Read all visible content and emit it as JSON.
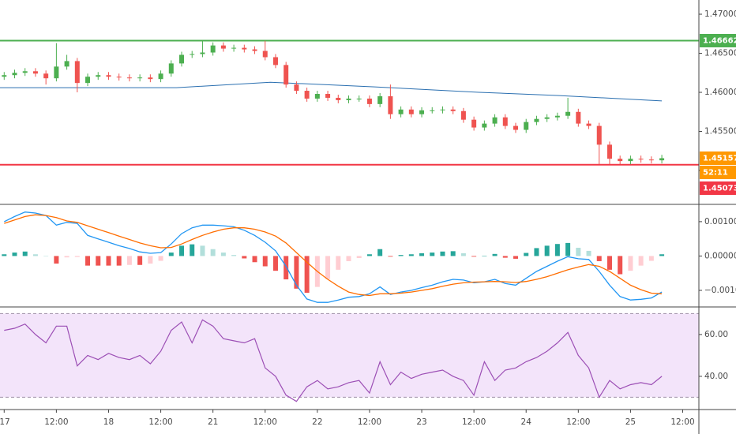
{
  "chart_data": [
    {
      "type": "candlestick",
      "x": [
        0,
        0.2,
        0.4,
        0.6,
        0.8,
        1,
        1.2,
        1.4,
        1.6,
        1.8,
        2,
        2.2,
        2.4,
        2.6,
        2.8,
        3,
        3.2,
        3.4,
        3.6,
        3.8,
        4,
        4.2,
        4.4,
        4.6,
        4.8,
        5,
        5.2,
        5.4,
        5.6,
        5.8,
        6,
        6.2,
        6.4,
        6.6,
        6.8,
        7,
        7.2,
        7.4,
        7.6,
        7.8,
        8,
        8.2,
        8.4,
        8.6,
        8.8,
        9,
        9.2,
        9.4,
        9.6,
        9.8,
        10,
        10.2,
        10.4,
        10.6,
        10.8,
        11,
        11.2,
        11.4,
        11.6,
        11.8,
        12,
        12.2,
        12.4,
        12.6
      ],
      "open": [
        1.462,
        1.4622,
        1.4625,
        1.4627,
        1.4624,
        1.4618,
        1.4633,
        1.464,
        1.4612,
        1.462,
        1.4622,
        1.462,
        1.4619,
        1.4618,
        1.4619,
        1.4617,
        1.4624,
        1.4637,
        1.4648,
        1.4649,
        1.4651,
        1.466,
        1.4656,
        1.4657,
        1.4655,
        1.4653,
        1.4645,
        1.4635,
        1.461,
        1.4602,
        1.4592,
        1.4598,
        1.4593,
        1.459,
        1.4592,
        1.4592,
        1.4585,
        1.4595,
        1.4572,
        1.4578,
        1.4572,
        1.4577,
        1.4577,
        1.4578,
        1.4576,
        1.4565,
        1.4555,
        1.456,
        1.4568,
        1.4557,
        1.4552,
        1.4562,
        1.4566,
        1.4568,
        1.457,
        1.4575,
        1.456,
        1.4557,
        1.4533,
        1.4515,
        1.4512,
        1.4515,
        1.4514,
        1.4513
      ],
      "high": [
        1.4626,
        1.4629,
        1.4631,
        1.4631,
        1.4628,
        1.4663,
        1.4648,
        1.4644,
        1.4624,
        1.4626,
        1.4626,
        1.4624,
        1.4623,
        1.4623,
        1.4623,
        1.4628,
        1.4641,
        1.4652,
        1.4653,
        1.4667,
        1.4664,
        1.4664,
        1.4661,
        1.4661,
        1.4659,
        1.4666,
        1.4649,
        1.4639,
        1.4614,
        1.4606,
        1.4602,
        1.4602,
        1.4597,
        1.4596,
        1.4596,
        1.4596,
        1.4599,
        1.461,
        1.4582,
        1.4582,
        1.4581,
        1.4581,
        1.4582,
        1.4582,
        1.458,
        1.4569,
        1.4564,
        1.4572,
        1.4572,
        1.4561,
        1.4566,
        1.457,
        1.4572,
        1.4574,
        1.4593,
        1.4579,
        1.4564,
        1.4561,
        1.4537,
        1.4519,
        1.4519,
        1.4519,
        1.4518,
        1.452
      ],
      "low": [
        1.4616,
        1.4618,
        1.4621,
        1.462,
        1.461,
        1.4614,
        1.4629,
        1.46,
        1.4608,
        1.4616,
        1.4616,
        1.4615,
        1.4614,
        1.4614,
        1.4613,
        1.4613,
        1.462,
        1.4633,
        1.4644,
        1.4645,
        1.4647,
        1.4652,
        1.4652,
        1.4651,
        1.4649,
        1.4641,
        1.4631,
        1.4606,
        1.4598,
        1.4588,
        1.4588,
        1.4589,
        1.4586,
        1.4586,
        1.4588,
        1.4581,
        1.4581,
        1.4566,
        1.4568,
        1.4568,
        1.4568,
        1.4573,
        1.4573,
        1.4572,
        1.4561,
        1.4551,
        1.4551,
        1.4556,
        1.4553,
        1.4548,
        1.4548,
        1.4558,
        1.4562,
        1.4564,
        1.4566,
        1.4556,
        1.4553,
        1.4508,
        1.4508,
        1.4508,
        1.4508,
        1.451,
        1.4509,
        1.4509
      ],
      "close": [
        1.4622,
        1.4625,
        1.4627,
        1.4624,
        1.4618,
        1.4633,
        1.464,
        1.4612,
        1.462,
        1.4622,
        1.462,
        1.4619,
        1.4618,
        1.4619,
        1.4617,
        1.4624,
        1.4637,
        1.4648,
        1.4649,
        1.4651,
        1.466,
        1.4656,
        1.4657,
        1.4655,
        1.4653,
        1.4645,
        1.4635,
        1.461,
        1.4602,
        1.4592,
        1.4598,
        1.4593,
        1.459,
        1.4592,
        1.4592,
        1.4585,
        1.4595,
        1.4572,
        1.4578,
        1.4572,
        1.4577,
        1.4577,
        1.4578,
        1.4576,
        1.4565,
        1.4555,
        1.456,
        1.4568,
        1.4557,
        1.4552,
        1.4562,
        1.4566,
        1.4568,
        1.457,
        1.4575,
        1.456,
        1.4557,
        1.4533,
        1.4515,
        1.4512,
        1.4515,
        1.4514,
        1.4513,
        1.45157
      ],
      "up_color": "#4caf50",
      "down_color": "#ef5350",
      "ma": {
        "x": [
          -0.1,
          3.3,
          5.1,
          7.1,
          9.1,
          10.6,
          12.6
        ],
        "values": [
          1.4606,
          1.4606,
          1.4613,
          1.4607,
          1.46,
          1.4596,
          1.4589
        ],
        "color": "#2a6fb0"
      },
      "levels": [
        {
          "value": 1.46662,
          "color": "#4caf50"
        },
        {
          "value": 1.45073,
          "color": "#f23645"
        }
      ],
      "last_price": {
        "value": 1.45157,
        "color": "#ff9800",
        "countdown": "52:11"
      },
      "xlim": [
        -0.08,
        13.31
      ],
      "xticks": [
        {
          "value": 0,
          "label": "17"
        },
        {
          "value": 1,
          "label": "12:00"
        },
        {
          "value": 2,
          "label": "18"
        },
        {
          "value": 3,
          "label": "12:00"
        },
        {
          "value": 4,
          "label": "21"
        },
        {
          "value": 5,
          "label": "12:00"
        },
        {
          "value": 6,
          "label": "22"
        },
        {
          "value": 7,
          "label": "12:00"
        },
        {
          "value": 8,
          "label": "23"
        },
        {
          "value": 9,
          "label": "12:00"
        },
        {
          "value": 10,
          "label": "24"
        },
        {
          "value": 11,
          "label": "12:00"
        },
        {
          "value": 12,
          "label": "25"
        },
        {
          "value": 13,
          "label": "12:00"
        }
      ],
      "ylim": [
        1.44576,
        1.47182
      ],
      "yticks": [
        {
          "value": 1.45,
          "label": "1.45000"
        },
        {
          "value": 1.455,
          "label": "1.45500"
        },
        {
          "value": 1.46,
          "label": "1.46000"
        },
        {
          "value": 1.465,
          "label": "1.46500"
        },
        {
          "value": 1.47,
          "label": "1.47000"
        }
      ]
    },
    {
      "type": "macd",
      "macd": [
        0.001,
        0.00115,
        0.00128,
        0.00125,
        0.00118,
        0.0009,
        0.00098,
        0.00095,
        0.0006,
        0.0005,
        0.0004,
        0.0003,
        0.00022,
        0.00012,
        8e-05,
        0.0001,
        0.00035,
        0.00065,
        0.00082,
        0.0009,
        0.0009,
        0.00088,
        0.00085,
        0.00075,
        0.0006,
        0.0004,
        0.00015,
        -0.0003,
        -0.00085,
        -0.00125,
        -0.00135,
        -0.00135,
        -0.00128,
        -0.0012,
        -0.00118,
        -0.0011,
        -0.0009,
        -0.00112,
        -0.00105,
        -0.001,
        -0.00092,
        -0.00085,
        -0.00075,
        -0.00068,
        -0.0007,
        -0.00078,
        -0.00075,
        -0.00068,
        -0.0008,
        -0.00085,
        -0.00065,
        -0.00045,
        -0.0003,
        -0.00015,
        -2e-05,
        -8e-05,
        -0.0001,
        -0.00045,
        -0.00085,
        -0.00118,
        -0.00128,
        -0.00126,
        -0.00122,
        -0.00105
      ],
      "signal": [
        0.00095,
        0.00105,
        0.00115,
        0.0012,
        0.00118,
        0.00112,
        0.00102,
        0.00098,
        0.00088,
        0.00078,
        0.00068,
        0.00058,
        0.00048,
        0.00038,
        0.0003,
        0.00024,
        0.00025,
        0.00035,
        0.00048,
        0.0006,
        0.0007,
        0.00078,
        0.00082,
        0.00082,
        0.00078,
        0.0007,
        0.00058,
        0.00038,
        0.0001,
        -0.00018,
        -0.00045,
        -0.00068,
        -0.00088,
        -0.00105,
        -0.00112,
        -0.00115,
        -0.0011,
        -0.0011,
        -0.00108,
        -0.00105,
        -0.001,
        -0.00095,
        -0.00088,
        -0.00082,
        -0.00078,
        -0.00076,
        -0.00075,
        -0.00074,
        -0.00075,
        -0.00077,
        -0.00074,
        -0.00068,
        -0.0006,
        -0.0005,
        -0.0004,
        -0.00032,
        -0.00025,
        -0.0003,
        -0.00045,
        -0.00065,
        -0.00085,
        -0.00098,
        -0.00108,
        -0.0011
      ],
      "histogram": [
        5e-05,
        0.0001,
        0.00013,
        5e-05,
        0.0,
        -0.00022,
        -4e-05,
        -3e-05,
        -0.00028,
        -0.00028,
        -0.00028,
        -0.00028,
        -0.00026,
        -0.00026,
        -0.00022,
        -0.00014,
        0.0001,
        0.0003,
        0.00034,
        0.0003,
        0.0002,
        0.0001,
        3e-05,
        -7e-05,
        -0.00018,
        -0.0003,
        -0.00043,
        -0.00068,
        -0.00095,
        -0.00107,
        -0.0009,
        -0.00067,
        -0.0004,
        -0.00015,
        -6e-05,
        5e-05,
        0.0002,
        -2e-05,
        3e-05,
        5e-05,
        8e-05,
        0.0001,
        0.00013,
        0.00014,
        8e-05,
        -2e-05,
        0.0,
        6e-05,
        -5e-05,
        -8e-05,
        9e-05,
        0.00023,
        0.0003,
        0.00035,
        0.00038,
        0.00024,
        0.00015,
        -0.00015,
        -0.0004,
        -0.00053,
        -0.00043,
        -0.00028,
        -0.00014,
        5e-05
      ],
      "macd_color": "#2196f3",
      "signal_color": "#ff6d00",
      "hist_colors": [
        "#26a69a",
        "#b2dfdb",
        "#ffcdd2",
        "#ef5350"
      ],
      "ylim": [
        -0.00146,
        0.00148
      ],
      "yticks": [
        {
          "value": 0.001,
          "label": "0.00100"
        },
        {
          "value": 0,
          "label": "0.00000"
        },
        {
          "value": -0.001,
          "label": "−0.00100"
        }
      ]
    },
    {
      "type": "line",
      "values": [
        62,
        63,
        65,
        60,
        56,
        64,
        64,
        45,
        50,
        48,
        51,
        49,
        48,
        50,
        46,
        52,
        62,
        66,
        56,
        67,
        64,
        58,
        57,
        56,
        58,
        44,
        40,
        31,
        28,
        35,
        38,
        34,
        35,
        37,
        38,
        32,
        47,
        36,
        42,
        39,
        41,
        42,
        43,
        40,
        38,
        31,
        47,
        38,
        43,
        44,
        47,
        49,
        52,
        56,
        61,
        50,
        44,
        30,
        38,
        34,
        36,
        37,
        36,
        40
      ],
      "color": "#9c4fb5",
      "band": [
        30,
        70
      ],
      "band_color": "#f3e4fa",
      "ylim": [
        24.5,
        72.8
      ],
      "yticks": [
        {
          "value": 40,
          "label": "40.00"
        },
        {
          "value": 60,
          "label": "60.00"
        }
      ]
    }
  ]
}
